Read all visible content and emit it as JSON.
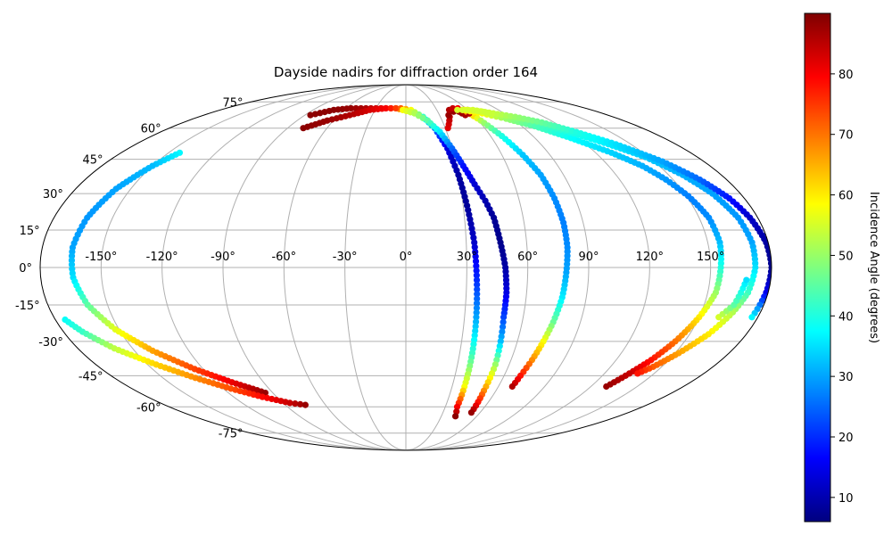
{
  "chart_data": {
    "type": "scatter",
    "projection": "mollweide",
    "title": "Dayside nadirs for diffraction order 164",
    "xlabel": "",
    "ylabel": "",
    "xlim": [
      -180,
      180
    ],
    "ylim": [
      -90,
      90
    ],
    "grid": true,
    "lon_ticks": [
      -150,
      -120,
      -90,
      -60,
      -30,
      0,
      30,
      60,
      90,
      120,
      150
    ],
    "lon_tick_labels": [
      "-150°",
      "-120°",
      "-90°",
      "-60°",
      "-30°",
      "0°",
      "30°",
      "60°",
      "90°",
      "120°",
      "150°"
    ],
    "lat_ticks": [
      75,
      60,
      45,
      30,
      15,
      0,
      -15,
      -30,
      -45,
      -60,
      -75
    ],
    "lat_tick_labels": [
      "75°",
      "60°",
      "45°",
      "30°",
      "15°",
      "0°",
      "-15°",
      "-30°",
      "-45°",
      "-60°",
      "-75°"
    ],
    "colorbar": {
      "label": "Incidence Angle (degrees)",
      "colormap": "jet",
      "vmin": 6,
      "vmax": 90,
      "ticks": [
        10,
        20,
        30,
        40,
        50,
        60,
        70,
        80
      ],
      "tick_labels": [
        "10",
        "20",
        "30",
        "40",
        "50",
        "60",
        "70",
        "80"
      ]
    },
    "series": [
      {
        "points": [
          [
            -143,
            48
          ],
          [
            -150,
            42
          ],
          [
            -158,
            32
          ],
          [
            -163,
            20
          ],
          [
            -165,
            8
          ],
          [
            -164,
            -4
          ],
          [
            -160,
            -15
          ],
          [
            -152,
            -25
          ],
          [
            -140,
            -34
          ],
          [
            -125,
            -42
          ],
          [
            -110,
            -48
          ],
          [
            -95,
            -53
          ]
        ],
        "c": [
          37,
          32,
          30,
          29,
          30,
          35,
          45,
          56,
          66,
          74,
          81,
          88
        ]
      },
      {
        "points": [
          [
            -175,
            -21
          ],
          [
            -170,
            -26
          ],
          [
            -160,
            -33
          ],
          [
            -145,
            -40
          ],
          [
            -130,
            -46
          ],
          [
            -115,
            -51
          ],
          [
            -100,
            -55
          ],
          [
            -85,
            -58
          ],
          [
            -75,
            -59
          ]
        ],
        "c": [
          38,
          42,
          53,
          62,
          68,
          73,
          79,
          84,
          88
        ]
      },
      {
        "points": [
          [
            -85,
            67
          ],
          [
            -70,
            70
          ],
          [
            -55,
            71
          ],
          [
            -40,
            71
          ],
          [
            -25,
            71
          ],
          [
            -10,
            71
          ],
          [
            -3,
            70
          ]
        ],
        "c": [
          89,
          89,
          88,
          86,
          82,
          72,
          62
        ]
      },
      {
        "points": [
          [
            -78,
            60
          ],
          [
            -65,
            64
          ],
          [
            -50,
            67
          ],
          [
            -35,
            70
          ],
          [
            -20,
            71
          ],
          [
            -5,
            71
          ],
          [
            5,
            70
          ],
          [
            15,
            66
          ],
          [
            22,
            60
          ],
          [
            27,
            50
          ],
          [
            30,
            38
          ],
          [
            32,
            25
          ],
          [
            34,
            10
          ],
          [
            35,
            -5
          ],
          [
            36,
            -20
          ],
          [
            37,
            -35
          ],
          [
            38,
            -50
          ],
          [
            39,
            -60
          ],
          [
            42,
            -65
          ]
        ],
        "c": [
          89,
          88,
          86,
          83,
          80,
          72,
          58,
          42,
          25,
          14,
          9,
          8,
          12,
          20,
          30,
          42,
          58,
          80,
          89
        ]
      },
      {
        "points": [
          [
            -3,
            70
          ],
          [
            8,
            68
          ],
          [
            18,
            64
          ],
          [
            25,
            58
          ],
          [
            30,
            50
          ],
          [
            34,
            42
          ],
          [
            38,
            34
          ],
          [
            42,
            27
          ],
          [
            45,
            20
          ],
          [
            47,
            10
          ],
          [
            49,
            0
          ],
          [
            50,
            -10
          ],
          [
            50,
            -20
          ],
          [
            51,
            -30
          ],
          [
            52,
            -40
          ],
          [
            52,
            -52
          ],
          [
            53,
            -63
          ]
        ],
        "c": [
          58,
          52,
          45,
          36,
          25,
          18,
          13,
          10,
          8,
          7,
          9,
          14,
          22,
          32,
          50,
          68,
          88
        ]
      },
      {
        "points": [
          [
            32,
            60
          ],
          [
            38,
            66
          ],
          [
            45,
            69
          ],
          [
            50,
            69
          ],
          [
            53,
            67
          ]
        ],
        "c": [
          82,
          85,
          88,
          88,
          87
        ]
      },
      {
        "points": [
          [
            38,
            67
          ],
          [
            42,
            70
          ],
          [
            47,
            71
          ],
          [
            52,
            71
          ],
          [
            56,
            70
          ],
          [
            62,
            64
          ],
          [
            68,
            56
          ],
          [
            73,
            47
          ],
          [
            77,
            38
          ],
          [
            79,
            28
          ],
          [
            80,
            18
          ],
          [
            80,
            8
          ],
          [
            79,
            -2
          ],
          [
            78,
            -12
          ],
          [
            76,
            -22
          ],
          [
            74,
            -30
          ],
          [
            72,
            -38
          ],
          [
            70,
            -45
          ],
          [
            69,
            -50
          ]
        ],
        "c": [
          88,
          86,
          84,
          80,
          74,
          52,
          40,
          33,
          30,
          28,
          27,
          28,
          30,
          36,
          46,
          58,
          68,
          78,
          86
        ]
      },
      {
        "points": [
          [
            58,
            68
          ],
          [
            60,
            70
          ]
        ],
        "c": [
          86,
          85
        ]
      },
      {
        "points": [
          [
            55,
            70
          ],
          [
            70,
            68
          ],
          [
            85,
            65
          ],
          [
            100,
            61
          ],
          [
            115,
            55
          ],
          [
            130,
            48
          ],
          [
            140,
            42
          ],
          [
            146,
            36
          ],
          [
            151,
            29
          ],
          [
            155,
            20
          ],
          [
            156,
            10
          ],
          [
            155,
            0
          ],
          [
            154,
            -10
          ],
          [
            150,
            -20
          ],
          [
            145,
            -30
          ],
          [
            140,
            -38
          ],
          [
            135,
            -44
          ],
          [
            130,
            -50
          ]
        ],
        "c": [
          62,
          58,
          50,
          44,
          38,
          34,
          31,
          29,
          27,
          28,
          32,
          40,
          50,
          60,
          70,
          78,
          84,
          88
        ]
      },
      {
        "points": [
          [
            58,
            70
          ],
          [
            72,
            69
          ],
          [
            88,
            66
          ],
          [
            105,
            63
          ],
          [
            120,
            58
          ],
          [
            135,
            52
          ],
          [
            148,
            46
          ],
          [
            158,
            38
          ],
          [
            165,
            30
          ],
          [
            170,
            20
          ],
          [
            172,
            10
          ],
          [
            172,
            0
          ],
          [
            170,
            -10
          ],
          [
            166,
            -18
          ],
          [
            160,
            -27
          ],
          [
            152,
            -35
          ],
          [
            145,
            -41
          ],
          [
            140,
            -44
          ]
        ],
        "c": [
          58,
          54,
          50,
          44,
          40,
          36,
          33,
          31,
          30,
          29,
          30,
          35,
          42,
          52,
          60,
          66,
          72,
          78
        ]
      },
      {
        "points": [
          [
            50,
            70
          ],
          [
            65,
            70
          ],
          [
            80,
            68
          ],
          [
            95,
            66
          ],
          [
            110,
            63
          ],
          [
            125,
            58
          ],
          [
            140,
            52
          ],
          [
            155,
            44
          ],
          [
            165,
            36
          ],
          [
            172,
            28
          ],
          [
            176,
            20
          ],
          [
            179,
            10
          ],
          [
            180,
            0
          ],
          [
            179,
            -10
          ],
          [
            177,
            -20
          ]
        ],
        "c": [
          55,
          55,
          54,
          50,
          46,
          40,
          35,
          30,
          25,
          18,
          12,
          9,
          7,
          15,
          37
        ]
      },
      {
        "points": [
          [
            160,
            -20
          ],
          [
            165,
            -15
          ],
          [
            168,
            -5
          ]
        ],
        "c": [
          55,
          45,
          35
        ]
      }
    ]
  }
}
